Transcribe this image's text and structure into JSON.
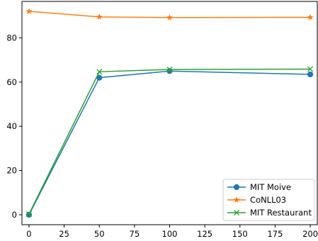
{
  "chart_data": {
    "type": "line",
    "title": "",
    "xlabel": "",
    "ylabel": "",
    "x": [
      0,
      50,
      100,
      200
    ],
    "xlim": [
      -5,
      205
    ],
    "ylim": [
      -4.5,
      96.5
    ],
    "xticks": [
      0,
      25,
      50,
      75,
      100,
      125,
      150,
      175,
      200
    ],
    "yticks": [
      0,
      20,
      40,
      60,
      80
    ],
    "grid": false,
    "legend_position": "lower-right",
    "series": [
      {
        "name": "MIT Moive",
        "values": [
          0,
          62,
          65,
          63.5
        ],
        "color": "#1f77b4",
        "marker": "circle"
      },
      {
        "name": "CoNLL03",
        "values": [
          92,
          89.5,
          89.2,
          89.3
        ],
        "color": "#ff7f0e",
        "marker": "star"
      },
      {
        "name": "MIT Restaurant",
        "values": [
          0.3,
          64.7,
          65.7,
          65.9
        ],
        "color": "#2ca02c",
        "marker": "x"
      }
    ]
  }
}
